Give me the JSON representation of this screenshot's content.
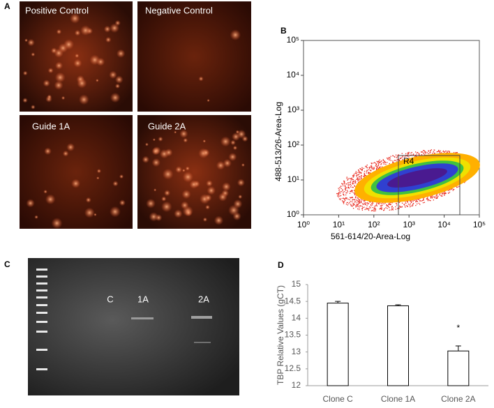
{
  "figure": {
    "panel_labels": [
      "A",
      "B",
      "C",
      "D"
    ],
    "A": {
      "images": [
        "Positive Control",
        "Negative Control",
        "Guide 1A",
        "Guide 2A"
      ]
    },
    "C": {
      "lanes": [
        "C",
        "1A",
        "2A"
      ]
    }
  },
  "chart_data": [
    {
      "type": "scatter",
      "xlabel": "561-614/20-Area-Log",
      "ylabel": "488-513/26-Area-Log",
      "log_scale": true,
      "xlim": [
        1,
        100000
      ],
      "ylim": [
        1,
        100000
      ],
      "xticks": [
        {
          "value": 1,
          "label": "10⁰"
        },
        {
          "value": 10,
          "label": "10¹"
        },
        {
          "value": 100,
          "label": "10²"
        },
        {
          "value": 1000,
          "label": "10³"
        },
        {
          "value": 10000,
          "label": "10⁴"
        },
        {
          "value": 100000,
          "label": "10⁵"
        }
      ],
      "yticks": [
        {
          "value": 1,
          "label": "10⁰"
        },
        {
          "value": 10,
          "label": "10¹"
        },
        {
          "value": 100,
          "label": "10²"
        },
        {
          "value": 1000,
          "label": "10³"
        },
        {
          "value": 10000,
          "label": "10⁴"
        },
        {
          "value": 100000,
          "label": "10⁵"
        }
      ],
      "gate_label": "R4"
    },
    {
      "type": "bar",
      "ylabel": "TBP Relative Values (gCT)",
      "categories": [
        "Clone C",
        "Clone 1A",
        "Clone 2A"
      ],
      "values": [
        14.45,
        14.37,
        13.03
      ],
      "errors": [
        0.05,
        0.03,
        0.15
      ],
      "color": "#ffffff",
      "ylim": [
        12,
        15
      ],
      "yticks": [
        12,
        12.5,
        13,
        13.5,
        14,
        14.5,
        15
      ],
      "annotation": "*"
    }
  ]
}
